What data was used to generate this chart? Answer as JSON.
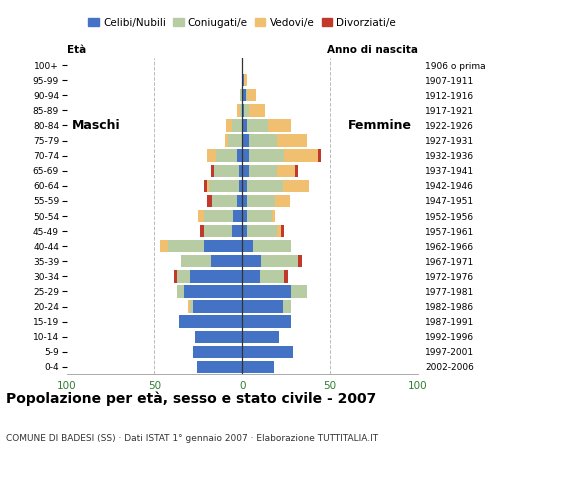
{
  "age_groups": [
    "0-4",
    "5-9",
    "10-14",
    "15-19",
    "20-24",
    "25-29",
    "30-34",
    "35-39",
    "40-44",
    "45-49",
    "50-54",
    "55-59",
    "60-64",
    "65-69",
    "70-74",
    "75-79",
    "80-84",
    "85-89",
    "90-94",
    "95-99",
    "100+"
  ],
  "birth_years": [
    "2002-2006",
    "1997-2001",
    "1992-1996",
    "1987-1991",
    "1982-1986",
    "1977-1981",
    "1972-1976",
    "1967-1971",
    "1962-1966",
    "1957-1961",
    "1952-1956",
    "1947-1951",
    "1942-1946",
    "1937-1941",
    "1932-1936",
    "1927-1931",
    "1922-1926",
    "1917-1921",
    "1912-1916",
    "1907-1911",
    "1906 o prima"
  ],
  "males_celibinubili": [
    26,
    28,
    27,
    36,
    28,
    33,
    30,
    18,
    22,
    6,
    5,
    3,
    2,
    2,
    3,
    0,
    0,
    0,
    0,
    0,
    0
  ],
  "males_coniugati": [
    0,
    0,
    0,
    0,
    2,
    4,
    7,
    17,
    20,
    16,
    17,
    14,
    17,
    14,
    12,
    8,
    6,
    1,
    1,
    0,
    0
  ],
  "males_vedovi": [
    0,
    0,
    0,
    0,
    1,
    0,
    0,
    0,
    5,
    0,
    3,
    0,
    1,
    0,
    5,
    2,
    3,
    2,
    0,
    0,
    0
  ],
  "males_divorziati": [
    0,
    0,
    0,
    0,
    0,
    0,
    2,
    0,
    0,
    2,
    0,
    3,
    2,
    2,
    0,
    0,
    0,
    0,
    0,
    0,
    0
  ],
  "females_celibinubili": [
    18,
    29,
    21,
    28,
    23,
    28,
    10,
    11,
    6,
    3,
    3,
    3,
    3,
    4,
    4,
    4,
    3,
    1,
    2,
    1,
    0
  ],
  "females_coniugate": [
    0,
    0,
    0,
    0,
    5,
    9,
    14,
    21,
    22,
    17,
    14,
    16,
    20,
    16,
    20,
    16,
    12,
    3,
    1,
    0,
    0
  ],
  "females_vedove": [
    0,
    0,
    0,
    0,
    0,
    0,
    0,
    0,
    0,
    2,
    2,
    8,
    15,
    10,
    19,
    17,
    13,
    9,
    5,
    2,
    0
  ],
  "females_divorziate": [
    0,
    0,
    0,
    0,
    0,
    0,
    2,
    2,
    0,
    2,
    0,
    0,
    0,
    2,
    2,
    0,
    0,
    0,
    0,
    0,
    0
  ],
  "color_celibinubili": "#4472c4",
  "color_coniugati": "#b8cca4",
  "color_vedovi": "#f0c070",
  "color_divorziati": "#c0392b",
  "legend_labels": [
    "Celibi/Nubili",
    "Coniugati/e",
    "Vedovi/e",
    "Divorziati/e"
  ],
  "title": "Popolazione per età, sesso e stato civile - 2007",
  "subtitle": "COMUNE DI BADESI (SS) · Dati ISTAT 1° gennaio 2007 · Elaborazione TUTTITALIA.IT",
  "label_eta": "Età",
  "label_anno": "Anno di nascita",
  "label_maschi": "Maschi",
  "label_femmine": "Femmine",
  "xlim": 100,
  "bar_height": 0.82
}
